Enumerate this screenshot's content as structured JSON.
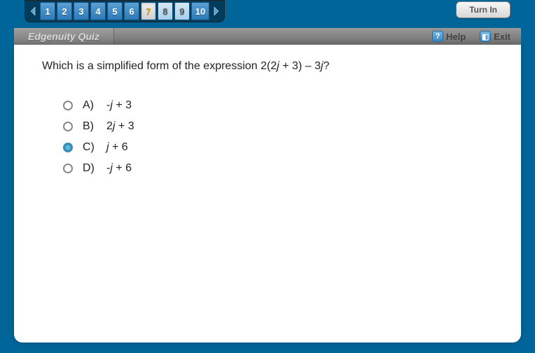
{
  "nav": {
    "items": [
      {
        "label": "1",
        "state": "normal"
      },
      {
        "label": "2",
        "state": "normal"
      },
      {
        "label": "3",
        "state": "normal"
      },
      {
        "label": "4",
        "state": "normal"
      },
      {
        "label": "5",
        "state": "normal"
      },
      {
        "label": "6",
        "state": "normal"
      },
      {
        "label": "7",
        "state": "active"
      },
      {
        "label": "8",
        "state": "answered"
      },
      {
        "label": "9",
        "state": "answered"
      },
      {
        "label": "10",
        "state": "normal",
        "wide": true
      }
    ],
    "prev_color": "#5a9fd4",
    "next_color": "#5a9fd4"
  },
  "turn_in_label": "Turn In",
  "header": {
    "title": "Edgenuity Quiz",
    "help_label": "Help",
    "exit_label": "Exit"
  },
  "question": {
    "prefix": "Which is a simplified form of the expression 2(2",
    "var1": "j",
    "mid": " + 3) – 3",
    "var2": "j",
    "suffix": "?"
  },
  "options": [
    {
      "letter": "A)",
      "prefix": "-",
      "var": "j",
      "suffix": " + 3",
      "selected": false
    },
    {
      "letter": "B)",
      "prefix": "2",
      "var": "j",
      "suffix": " + 3",
      "selected": false
    },
    {
      "letter": "C)",
      "prefix": "",
      "var": "j",
      "suffix": " + 6",
      "selected": true
    },
    {
      "letter": "D)",
      "prefix": "-",
      "var": "j",
      "suffix": " + 6",
      "selected": false
    }
  ],
  "colors": {
    "bg": "#006699",
    "nav_bg": "#003d5c",
    "btn_grad_top": "#5a9fd4",
    "btn_grad_bot": "#2b7ab8",
    "active_text": "#d4a017",
    "header_grad_top": "#999",
    "header_grad_bot": "#707070",
    "content_bg": "#ffffff",
    "radio_selected": "#5eb8d8"
  }
}
